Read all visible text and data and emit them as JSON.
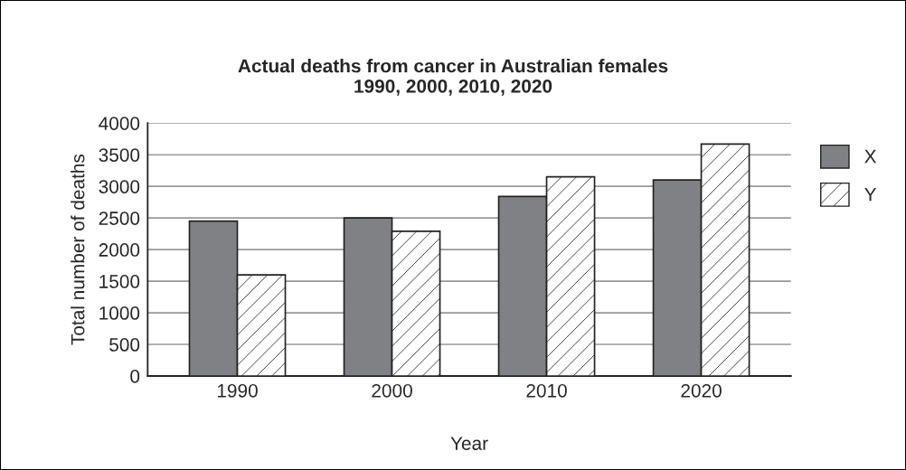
{
  "chart_data": {
    "type": "bar",
    "title": "Actual deaths from cancer in Australian females\n1990, 2000, 2010, 2020",
    "xlabel": "Year",
    "ylabel": "Total number of deaths",
    "categories": [
      "1990",
      "2000",
      "2010",
      "2020"
    ],
    "series": [
      {
        "name": "X",
        "color": "#808184",
        "values": [
          2450,
          2500,
          2840,
          3100
        ]
      },
      {
        "name": "Y",
        "color": "#ffffff",
        "values": [
          1600,
          2290,
          3150,
          3670
        ]
      }
    ],
    "ylim": [
      0,
      4000
    ],
    "yticks": [
      0,
      500,
      1000,
      1500,
      2000,
      2500,
      3000,
      3500,
      4000
    ],
    "grid": "y",
    "legend": "right"
  }
}
